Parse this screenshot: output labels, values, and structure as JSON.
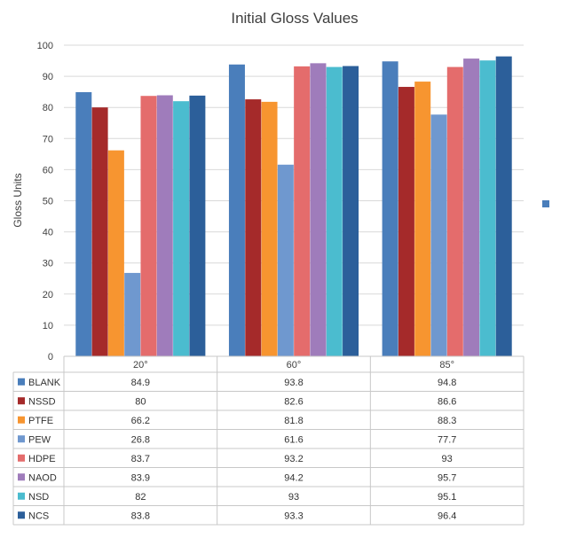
{
  "chart_data": {
    "type": "bar",
    "title": "Initial Gloss Values",
    "ylabel": "Gloss Units",
    "xlabel": "",
    "ylim": [
      0,
      100
    ],
    "yticks": [
      0,
      10,
      20,
      30,
      40,
      50,
      60,
      70,
      80,
      90,
      100
    ],
    "grid": true,
    "legend": "data-table",
    "categories": [
      "20°",
      "60°",
      "85°"
    ],
    "series": [
      {
        "name": "BLANK",
        "color": "#4a7ebb",
        "values": [
          84.9,
          93.8,
          94.8
        ],
        "labels": [
          "84.9",
          "93.8",
          "94.8"
        ]
      },
      {
        "name": "NSSD",
        "color": "#a52a2a",
        "values": [
          80,
          82.6,
          86.6
        ],
        "labels": [
          "80",
          "82.6",
          "86.6"
        ]
      },
      {
        "name": "PTFE",
        "color": "#f79530",
        "values": [
          66.2,
          81.8,
          88.3
        ],
        "labels": [
          "66.2",
          "81.8",
          "88.3"
        ]
      },
      {
        "name": "PEW",
        "color": "#6f98cf",
        "values": [
          26.8,
          61.6,
          77.7
        ],
        "labels": [
          "26.8",
          "61.6",
          "77.7"
        ]
      },
      {
        "name": "HDPE",
        "color": "#e46c6c",
        "values": [
          83.7,
          93.2,
          93
        ],
        "labels": [
          "83.7",
          "93.2",
          "93"
        ]
      },
      {
        "name": "NAOD",
        "color": "#9f7cbb",
        "values": [
          83.9,
          94.2,
          95.7
        ],
        "labels": [
          "83.9",
          "94.2",
          "95.7"
        ]
      },
      {
        "name": "NSD",
        "color": "#4bbccf",
        "values": [
          82,
          93,
          95.1
        ],
        "labels": [
          "82",
          "93",
          "95.1"
        ]
      },
      {
        "name": "NCS",
        "color": "#2c5f9a",
        "values": [
          83.8,
          93.3,
          96.4
        ],
        "labels": [
          "83.8",
          "93.3",
          "96.4"
        ]
      }
    ]
  }
}
